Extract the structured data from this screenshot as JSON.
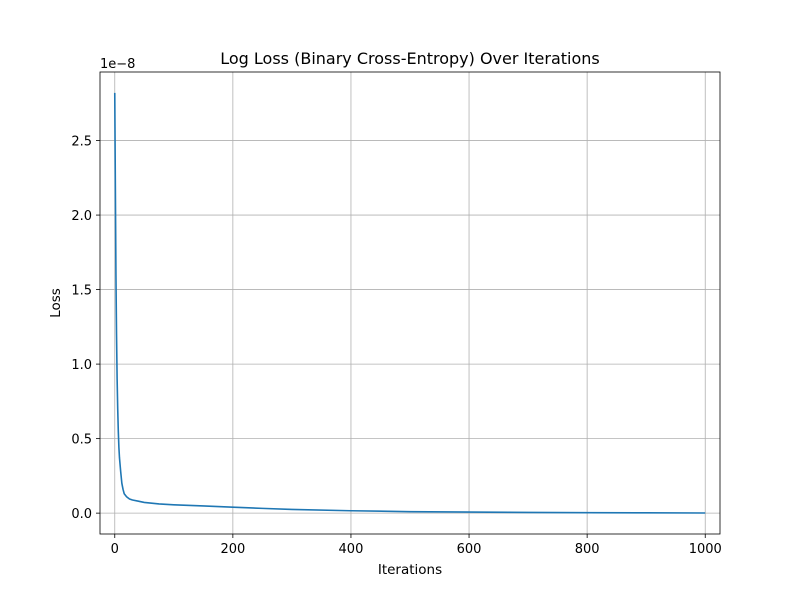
{
  "chart_data": {
    "type": "line",
    "title": "Log Loss (Binary Cross-Entropy) Over Iterations",
    "xlabel": "Iterations",
    "ylabel": "Loss",
    "offset_text": "1e−8",
    "xlim": [
      -25,
      1025
    ],
    "ylim": [
      -0.14,
      2.96
    ],
    "xticks": [
      0,
      200,
      400,
      600,
      800,
      1000
    ],
    "xtick_labels": [
      "0",
      "200",
      "400",
      "600",
      "800",
      "1000"
    ],
    "yticks": [
      0.0,
      0.5,
      1.0,
      1.5,
      2.0,
      2.5
    ],
    "ytick_labels": [
      "0.0",
      "0.5",
      "1.0",
      "1.5",
      "2.0",
      "2.5"
    ],
    "grid": true,
    "series": [
      {
        "color": "#1f77b4",
        "x": [
          0,
          1,
          2,
          3,
          4,
          5,
          6,
          7,
          8,
          10,
          12,
          14,
          16,
          20,
          25,
          30,
          40,
          50,
          75,
          100,
          150,
          200,
          250,
          300,
          400,
          500,
          600,
          700,
          800,
          900,
          1000
        ],
        "y": [
          2.82,
          2.2,
          1.6,
          1.2,
          0.9,
          0.7,
          0.55,
          0.44,
          0.37,
          0.28,
          0.2,
          0.16,
          0.13,
          0.11,
          0.095,
          0.088,
          0.08,
          0.072,
          0.062,
          0.056,
          0.048,
          0.04,
          0.032,
          0.025,
          0.016,
          0.01,
          0.007,
          0.005,
          0.003,
          0.002,
          0.001
        ]
      }
    ]
  }
}
